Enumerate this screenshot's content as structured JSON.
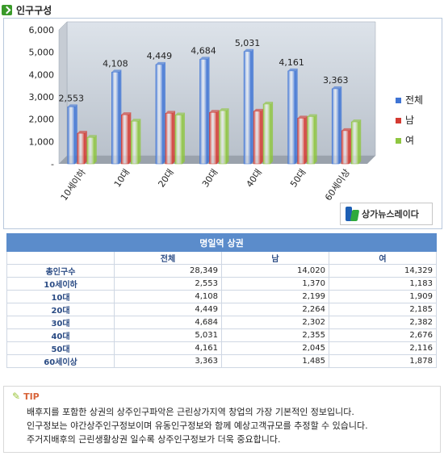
{
  "section_title": "인구구성",
  "brand": "상가뉴스레이다",
  "chart_data": {
    "type": "bar",
    "categories": [
      "10세이하",
      "10대",
      "20대",
      "30대",
      "40대",
      "50대",
      "60세이상"
    ],
    "series": [
      {
        "name": "전체",
        "values": [
          2553,
          4108,
          4449,
          4684,
          5031,
          4161,
          3363
        ],
        "color": "#3f74d4"
      },
      {
        "name": "남",
        "values": [
          1370,
          2199,
          2264,
          2302,
          2355,
          2045,
          1485
        ],
        "color": "#d43b32"
      },
      {
        "name": "여",
        "values": [
          1183,
          1909,
          2185,
          2382,
          2676,
          2116,
          1878
        ],
        "color": "#8fc640"
      }
    ],
    "data_labels": [
      "2,553",
      "4,108",
      "4,449",
      "4,684",
      "5,031",
      "4,161",
      "3,363"
    ],
    "y_ticks": [
      "-",
      "1,000",
      "2,000",
      "3,000",
      "4,000",
      "5,000",
      "6,000"
    ],
    "ylim": [
      0,
      6000
    ],
    "legend_position": "right",
    "grid": false
  },
  "table": {
    "caption": "명일역 상권",
    "columns": [
      "",
      "전체",
      "남",
      "여"
    ],
    "rows": [
      {
        "label": "총인구수",
        "total": "28,349",
        "male": "14,020",
        "female": "14,329"
      },
      {
        "label": "10세이하",
        "total": "2,553",
        "male": "1,370",
        "female": "1,183"
      },
      {
        "label": "10대",
        "total": "4,108",
        "male": "2,199",
        "female": "1,909"
      },
      {
        "label": "20대",
        "total": "4,449",
        "male": "2,264",
        "female": "2,185"
      },
      {
        "label": "30대",
        "total": "4,684",
        "male": "2,302",
        "female": "2,382"
      },
      {
        "label": "40대",
        "total": "5,031",
        "male": "2,355",
        "female": "2,676"
      },
      {
        "label": "50대",
        "total": "4,161",
        "male": "2,045",
        "female": "2,116"
      },
      {
        "label": "60세이상",
        "total": "3,363",
        "male": "1,485",
        "female": "1,878"
      }
    ]
  },
  "tip": {
    "label": "TIP",
    "lines": [
      "배후지를 포함한 상권의 상주인구파악은 근린상가지역 창업의 가장 기본적인 정보입니다.",
      "인구정보는 야간상주인구정보이며 유동인구정보와 함께 예상고객규모를 추정할 수 있습니다.",
      "주거지배후의 근린생활상권 일수록 상주인구정보가 더욱 중요합니다."
    ]
  }
}
